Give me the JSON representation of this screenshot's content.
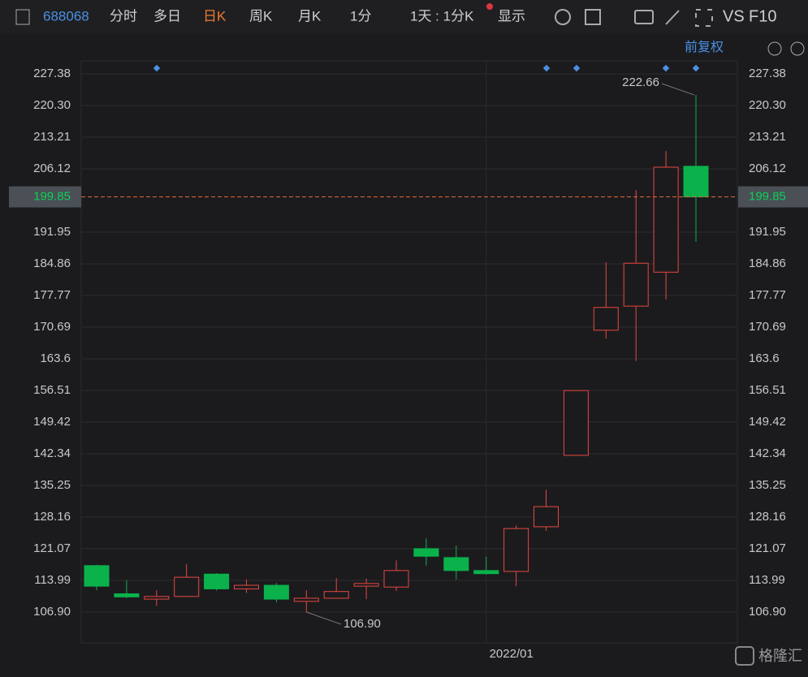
{
  "toolbar": {
    "code": "688068",
    "items": [
      "分时",
      "多日",
      "日K",
      "周K",
      "月K",
      "1分",
      "1天 : 1分K",
      "显示",
      "VS",
      "F10"
    ],
    "adjust": "前复权"
  },
  "watermark": "格隆汇",
  "chart_data": {
    "type": "candlestick",
    "categories": [
      null,
      null,
      null,
      null,
      null,
      null,
      null,
      null,
      null,
      null,
      null,
      null,
      null,
      "2022/01",
      null,
      null,
      null,
      null,
      null,
      null,
      null
    ],
    "open": [
      117.3,
      111.0,
      109.8,
      110.4,
      115.4,
      112.1,
      112.9,
      109.3,
      110.0,
      112.7,
      112.5,
      121.1,
      119.1,
      116.2,
      116.0,
      126.0,
      142.0,
      170.0,
      175.4,
      183.0,
      206.7
    ],
    "high": [
      117.5,
      114.0,
      111.8,
      117.6,
      115.6,
      114.2,
      113.4,
      111.8,
      114.5,
      114.4,
      118.5,
      123.4,
      121.8,
      119.3,
      126.3,
      134.3,
      156.5,
      185.2,
      201.4,
      210.1,
      222.66
    ],
    "low": [
      111.8,
      110.0,
      108.3,
      110.4,
      111.7,
      111.2,
      109.1,
      106.9,
      110.0,
      109.8,
      111.6,
      117.3,
      114.2,
      115.3,
      112.7,
      125.1,
      142.0,
      168.1,
      163.1,
      176.9,
      189.8
    ],
    "close": [
      112.7,
      110.3,
      110.4,
      114.7,
      112.1,
      112.9,
      109.8,
      110.0,
      111.5,
      113.3,
      116.2,
      119.4,
      116.2,
      115.5,
      125.6,
      130.5,
      156.5,
      175.1,
      185.0,
      206.5,
      199.85
    ],
    "up_color": "#e8473f",
    "down_color": "#0bb24b",
    "ylim": [
      100,
      230.3
    ],
    "yticks": [
      227.38,
      {
        "value": 220.3,
        "label": "220.30"
      },
      213.21,
      206.12,
      199.85,
      191.95,
      184.86,
      177.77,
      170.69,
      163.6,
      156.51,
      149.42,
      142.34,
      135.25,
      128.16,
      121.07,
      113.99,
      {
        "value": 106.9,
        "label": "106.90"
      }
    ],
    "last_price": 199.85,
    "high_label": 222.66,
    "low_label": {
      "value": 106.9,
      "label": "106.90"
    },
    "grid": true
  }
}
